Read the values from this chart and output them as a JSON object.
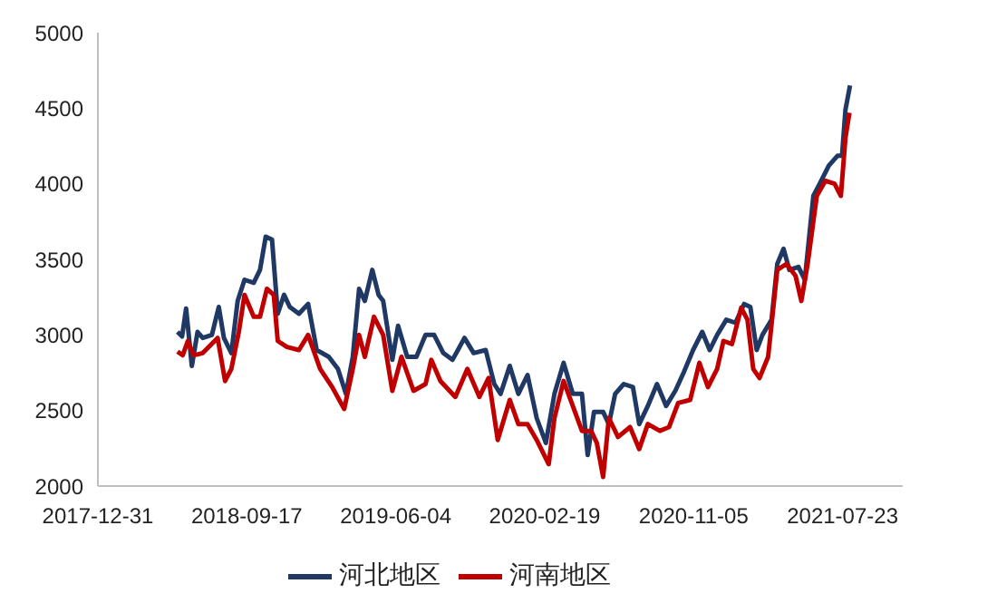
{
  "chart_data": {
    "type": "line",
    "xlim": [
      "2017-12-31",
      "2021-11-05"
    ],
    "xticks": [
      "2017-12-31",
      "2018-09-17",
      "2019-06-04",
      "2020-02-19",
      "2020-11-05",
      "2021-07-23"
    ],
    "ylim": [
      2000,
      5000
    ],
    "yticks": [
      2000,
      2500,
      3000,
      3500,
      4000,
      4500,
      5000
    ],
    "grid": false,
    "legend": "bottom",
    "marker": "none",
    "line_style": "solid",
    "series": [
      {
        "name": "河北地区",
        "color": "#1f3864",
        "x": [
          "2018-05-19",
          "2018-05-27",
          "2018-06-03",
          "2018-06-13",
          "2018-06-23",
          "2018-07-02",
          "2018-07-18",
          "2018-07-30",
          "2018-08-08",
          "2018-08-21",
          "2018-09-01",
          "2018-09-13",
          "2018-09-29",
          "2018-10-10",
          "2018-10-20",
          "2018-10-31",
          "2018-11-10",
          "2018-11-21",
          "2018-12-01",
          "2018-12-17",
          "2019-01-02",
          "2019-01-17",
          "2019-02-07",
          "2019-02-23",
          "2019-03-09",
          "2019-03-21",
          "2019-04-01",
          "2019-04-11",
          "2019-04-24",
          "2019-05-05",
          "2019-05-13",
          "2019-05-29",
          "2019-06-08",
          "2019-06-24",
          "2019-07-10",
          "2019-07-26",
          "2019-08-10",
          "2019-08-26",
          "2019-09-11",
          "2019-10-02",
          "2019-10-18",
          "2019-11-08",
          "2019-11-23",
          "2019-12-04",
          "2019-12-20",
          "2020-01-04",
          "2020-01-20",
          "2020-02-05",
          "2020-02-21",
          "2020-03-07",
          "2020-03-23",
          "2020-04-08",
          "2020-04-24",
          "2020-05-04",
          "2020-05-15",
          "2020-05-31",
          "2020-06-10",
          "2020-06-21",
          "2020-07-06",
          "2020-07-22",
          "2020-08-02",
          "2020-08-17",
          "2020-09-02",
          "2020-09-18",
          "2020-10-04",
          "2020-10-19",
          "2020-11-04",
          "2020-11-20",
          "2020-12-03",
          "2020-12-16",
          "2021-01-01",
          "2021-01-17",
          "2021-02-01",
          "2021-02-12",
          "2021-02-23",
          "2021-03-05",
          "2021-03-21",
          "2021-03-31",
          "2021-04-11",
          "2021-04-21",
          "2021-05-07",
          "2021-05-18",
          "2021-06-02",
          "2021-06-13",
          "2021-06-29",
          "2021-07-14",
          "2021-07-22",
          "2021-07-28",
          "2021-08-05"
        ],
        "values": [
          3020,
          2990,
          3175,
          2795,
          3020,
          2980,
          3000,
          3185,
          2980,
          2880,
          3225,
          3365,
          3345,
          3430,
          3650,
          3630,
          3140,
          3265,
          3185,
          3140,
          3205,
          2900,
          2855,
          2775,
          2610,
          2855,
          3305,
          3225,
          3430,
          3265,
          3225,
          2835,
          3060,
          2855,
          2855,
          3000,
          3000,
          2880,
          2835,
          2980,
          2880,
          2900,
          2675,
          2610,
          2795,
          2610,
          2735,
          2450,
          2285,
          2610,
          2815,
          2610,
          2610,
          2205,
          2490,
          2490,
          2410,
          2610,
          2675,
          2655,
          2410,
          2530,
          2675,
          2530,
          2630,
          2755,
          2900,
          3020,
          2900,
          3000,
          3100,
          3080,
          3205,
          3185,
          2900,
          3000,
          3100,
          3470,
          3570,
          3430,
          3450,
          3365,
          3920,
          4000,
          4120,
          4185,
          4185,
          4490,
          4650
        ]
      },
      {
        "name": "河南地区",
        "color": "#c00000",
        "x": [
          "2018-05-19",
          "2018-05-28",
          "2018-06-06",
          "2018-06-16",
          "2018-07-02",
          "2018-07-28",
          "2018-08-10",
          "2018-08-21",
          "2018-09-03",
          "2018-09-13",
          "2018-09-29",
          "2018-10-10",
          "2018-10-22",
          "2018-11-03",
          "2018-11-10",
          "2018-11-26",
          "2018-12-17",
          "2019-01-02",
          "2019-01-23",
          "2019-02-13",
          "2019-03-06",
          "2019-03-21",
          "2019-04-01",
          "2019-04-11",
          "2019-04-27",
          "2019-05-13",
          "2019-05-29",
          "2019-06-14",
          "2019-07-05",
          "2019-07-26",
          "2019-08-05",
          "2019-08-21",
          "2019-09-16",
          "2019-10-07",
          "2019-10-28",
          "2019-11-13",
          "2019-11-29",
          "2019-12-20",
          "2020-01-04",
          "2020-01-20",
          "2020-02-05",
          "2020-02-26",
          "2020-03-07",
          "2020-03-23",
          "2020-04-08",
          "2020-04-24",
          "2020-05-10",
          "2020-05-20",
          "2020-05-31",
          "2020-06-10",
          "2020-06-26",
          "2020-07-17",
          "2020-08-02",
          "2020-08-17",
          "2020-09-07",
          "2020-09-23",
          "2020-10-09",
          "2020-10-30",
          "2020-11-15",
          "2020-11-30",
          "2020-12-16",
          "2020-12-27",
          "2021-01-11",
          "2021-01-27",
          "2021-02-07",
          "2021-02-17",
          "2021-02-28",
          "2021-03-15",
          "2021-03-31",
          "2021-04-16",
          "2021-05-02",
          "2021-05-12",
          "2021-05-23",
          "2021-06-08",
          "2021-06-23",
          "2021-07-09",
          "2021-07-20",
          "2021-07-28",
          "2021-08-04"
        ],
        "values": [
          2890,
          2865,
          2960,
          2865,
          2880,
          2980,
          2695,
          2775,
          3020,
          3265,
          3120,
          3120,
          3305,
          3265,
          2960,
          2920,
          2900,
          3000,
          2775,
          2655,
          2510,
          2775,
          3000,
          2855,
          3120,
          3000,
          2630,
          2855,
          2630,
          2675,
          2835,
          2695,
          2590,
          2775,
          2590,
          2715,
          2305,
          2570,
          2410,
          2410,
          2305,
          2145,
          2450,
          2695,
          2530,
          2365,
          2365,
          2285,
          2060,
          2450,
          2325,
          2390,
          2245,
          2410,
          2365,
          2390,
          2550,
          2570,
          2815,
          2655,
          2775,
          2960,
          2940,
          3180,
          3100,
          2775,
          2715,
          2855,
          3430,
          3470,
          3390,
          3225,
          3470,
          3920,
          4020,
          4000,
          3920,
          4305,
          4470
        ]
      }
    ]
  }
}
